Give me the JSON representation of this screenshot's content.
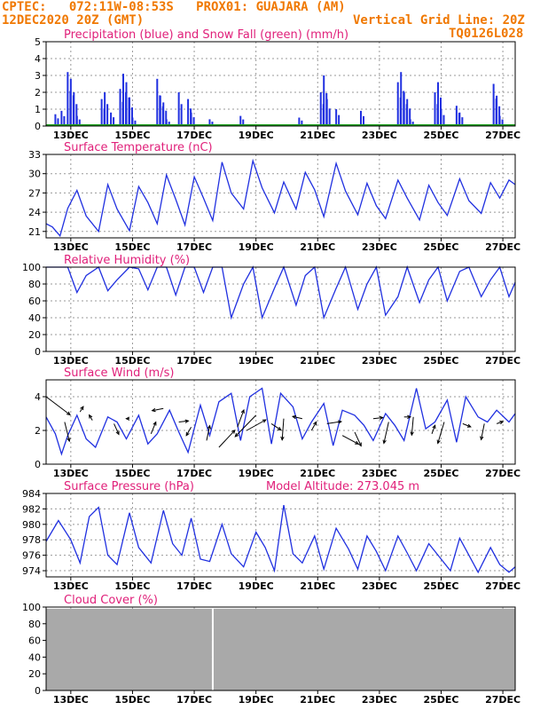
{
  "header": {
    "line1_left": "CPTEC:   072:11W-08:53S   PROX01: GUAJARA (AM)",
    "line2_left": "12DEC2020 20Z (GMT)",
    "line2_right": "Vertical Grid Line: 20Z",
    "line3_right": "TQ0126L028"
  },
  "colors": {
    "title": "#e0207a",
    "header": "#f07800",
    "series": "#2030e0",
    "snow": "#20a020",
    "cloud": "#a9a9a9"
  },
  "x_axis": {
    "range_days": [
      0,
      15.2
    ],
    "tick_labels": [
      "13DEC",
      "15DEC",
      "17DEC",
      "19DEC",
      "21DEC",
      "23DEC",
      "25DEC",
      "27DEC"
    ]
  },
  "chart_data": [
    {
      "type": "bar",
      "title": "Precipitation (blue) and Snow Fall (green) (mm/h)",
      "ylim": [
        0,
        5
      ],
      "yticks": [
        "0",
        "1",
        "2",
        "3",
        "4",
        "5"
      ],
      "series": [
        {
          "name": "Precipitation",
          "values": [
            [
              0.3,
              0.7
            ],
            [
              0.5,
              0.9
            ],
            [
              0.7,
              3.2
            ],
            [
              0.8,
              2.8
            ],
            [
              0.9,
              2.0
            ],
            [
              1.0,
              0.6
            ],
            [
              1.8,
              1.6
            ],
            [
              1.9,
              2.0
            ],
            [
              2.1,
              0.8
            ],
            [
              2.4,
              2.2
            ],
            [
              2.5,
              3.1
            ],
            [
              2.6,
              2.6
            ],
            [
              2.7,
              1.7
            ],
            [
              2.8,
              0.5
            ],
            [
              3.6,
              2.8
            ],
            [
              3.7,
              1.8
            ],
            [
              3.8,
              1.4
            ],
            [
              3.9,
              0.4
            ],
            [
              4.3,
              2.0
            ],
            [
              4.6,
              1.6
            ],
            [
              4.7,
              0.8
            ],
            [
              5.3,
              0.4
            ],
            [
              6.3,
              0.6
            ],
            [
              8.2,
              0.5
            ],
            [
              8.9,
              2.0
            ],
            [
              9.0,
              3.0
            ],
            [
              9.1,
              1.6
            ],
            [
              9.4,
              1.0
            ],
            [
              10.2,
              0.9
            ],
            [
              11.4,
              2.6
            ],
            [
              11.5,
              3.2
            ],
            [
              11.6,
              2.0
            ],
            [
              11.7,
              1.6
            ],
            [
              11.8,
              0.4
            ],
            [
              12.6,
              2.0
            ],
            [
              12.7,
              2.6
            ],
            [
              12.8,
              1.0
            ],
            [
              13.3,
              1.2
            ],
            [
              13.4,
              0.8
            ],
            [
              14.5,
              2.5
            ],
            [
              14.6,
              1.8
            ],
            [
              14.7,
              0.6
            ]
          ]
        },
        {
          "name": "Snow Fall",
          "values": [
            0
          ]
        }
      ]
    },
    {
      "type": "line",
      "title": "Surface Temperature (nC)",
      "ylim": [
        20,
        33
      ],
      "yticks": [
        "21",
        "24",
        "27",
        "30",
        "33"
      ],
      "series": [
        {
          "name": "",
          "x": [
            0,
            0.2,
            0.45,
            0.7,
            1.0,
            1.3,
            1.7,
            2.0,
            2.3,
            2.7,
            3.0,
            3.3,
            3.6,
            3.9,
            4.2,
            4.5,
            4.8,
            5.1,
            5.4,
            5.7,
            6.0,
            6.4,
            6.7,
            7.0,
            7.4,
            7.7,
            8.1,
            8.4,
            8.7,
            9.0,
            9.4,
            9.7,
            10.1,
            10.4,
            10.7,
            11.0,
            11.4,
            11.7,
            12.1,
            12.4,
            12.7,
            13.0,
            13.4,
            13.7,
            14.1,
            14.4,
            14.7,
            15.0,
            15.2
          ],
          "y": [
            22.2,
            21.7,
            20.3,
            24.6,
            27.4,
            23.4,
            21.0,
            28.3,
            24.5,
            21.1,
            28.0,
            25.5,
            22.2,
            29.8,
            26.0,
            22.0,
            29.5,
            26.2,
            22.7,
            31.8,
            27.0,
            24.5,
            32.0,
            27.8,
            23.9,
            28.7,
            24.5,
            30.2,
            27.5,
            23.3,
            31.6,
            27.3,
            23.6,
            28.5,
            25.0,
            23.0,
            29.0,
            26.2,
            22.8,
            28.2,
            25.5,
            23.5,
            29.2,
            25.8,
            23.8,
            28.6,
            26.2,
            29.0,
            28.3
          ]
        }
      ]
    },
    {
      "type": "line",
      "title": "Relative Humidity (%)",
      "ylim": [
        0,
        100
      ],
      "yticks": [
        "0",
        "20",
        "40",
        "60",
        "80",
        "100"
      ],
      "series": [
        {
          "name": "",
          "x": [
            0,
            0.3,
            0.7,
            1.0,
            1.3,
            1.7,
            2.0,
            2.3,
            2.7,
            3.0,
            3.3,
            3.6,
            3.9,
            4.2,
            4.5,
            4.8,
            5.1,
            5.4,
            5.7,
            6.0,
            6.4,
            6.7,
            7.0,
            7.4,
            7.7,
            8.1,
            8.4,
            8.7,
            9.0,
            9.4,
            9.7,
            10.1,
            10.4,
            10.7,
            11.0,
            11.4,
            11.7,
            12.1,
            12.4,
            12.7,
            13.0,
            13.4,
            13.7,
            14.1,
            14.4,
            14.7,
            15.0,
            15.2
          ],
          "y": [
            100,
            100,
            100,
            70,
            90,
            100,
            72,
            85,
            100,
            98,
            73,
            100,
            100,
            67,
            100,
            100,
            70,
            100,
            100,
            40,
            80,
            100,
            40,
            75,
            100,
            55,
            90,
            100,
            40,
            75,
            100,
            50,
            80,
            100,
            43,
            65,
            100,
            58,
            85,
            100,
            60,
            95,
            100,
            65,
            85,
            100,
            65,
            82
          ]
        }
      ]
    },
    {
      "type": "line",
      "title": "Surface Wind (m/s)",
      "ylim": [
        0,
        5
      ],
      "yticks": [
        "0",
        "2",
        "4"
      ],
      "series": [
        {
          "name": "",
          "x": [
            0,
            0.3,
            0.5,
            0.7,
            1.0,
            1.3,
            1.6,
            2.0,
            2.3,
            2.6,
            3.0,
            3.3,
            3.6,
            4.0,
            4.3,
            4.6,
            5.0,
            5.3,
            5.6,
            6.0,
            6.3,
            6.6,
            7.0,
            7.3,
            7.6,
            8.0,
            8.3,
            8.6,
            9.0,
            9.3,
            9.6,
            10.0,
            10.3,
            10.6,
            11.0,
            11.3,
            11.6,
            12.0,
            12.3,
            12.6,
            13.0,
            13.3,
            13.6,
            14.0,
            14.3,
            14.6,
            15.0,
            15.2
          ],
          "y": [
            2.8,
            1.8,
            0.6,
            1.7,
            2.9,
            1.5,
            1.0,
            2.8,
            2.5,
            1.5,
            2.9,
            1.2,
            1.8,
            3.2,
            1.9,
            0.7,
            3.5,
            1.7,
            3.7,
            4.2,
            1.4,
            4.0,
            4.5,
            1.2,
            4.2,
            3.4,
            1.5,
            2.5,
            3.6,
            1.1,
            3.2,
            2.9,
            2.3,
            1.4,
            3.0,
            2.3,
            1.4,
            4.5,
            2.1,
            2.5,
            3.8,
            1.3,
            4.0,
            2.8,
            2.5,
            3.2,
            2.5,
            3.0
          ]
        }
      ],
      "vectors": [
        [
          0,
          4.0,
          1.5,
          -1.7
        ],
        [
          0.6,
          2.5,
          0.3,
          -1.8
        ],
        [
          1.1,
          3.1,
          0.2,
          0.5
        ],
        [
          1.5,
          2.6,
          -0.2,
          0.5
        ],
        [
          2.2,
          2.4,
          0.3,
          -1.0
        ],
        [
          2.7,
          2.7,
          -0.2,
          0.0
        ],
        [
          3.4,
          1.8,
          0.3,
          1.1
        ],
        [
          3.8,
          3.3,
          -0.7,
          -0.2
        ],
        [
          4.3,
          2.5,
          0.6,
          0.1
        ],
        [
          4.7,
          2.2,
          -0.3,
          -0.8
        ],
        [
          5.2,
          1.4,
          0.2,
          1.4
        ],
        [
          5.6,
          1.0,
          1.0,
          1.6
        ],
        [
          6.2,
          2.2,
          0.4,
          1.6
        ],
        [
          6.5,
          2.0,
          1.2,
          1.0
        ],
        [
          6.8,
          2.9,
          -1.3,
          -2.0
        ],
        [
          7.3,
          2.4,
          0.6,
          -0.6
        ],
        [
          7.7,
          2.7,
          -0.1,
          -2.0
        ],
        [
          8.3,
          2.7,
          -0.6,
          0.2
        ],
        [
          8.6,
          2.0,
          0.3,
          0.8
        ],
        [
          9.1,
          2.4,
          0.9,
          0.2
        ],
        [
          9.6,
          1.7,
          1.0,
          -0.8
        ],
        [
          10.0,
          1.9,
          0.4,
          -1.3
        ],
        [
          10.6,
          2.7,
          0.6,
          0.1
        ],
        [
          11.1,
          2.5,
          -0.3,
          -2.0
        ],
        [
          11.6,
          2.8,
          0.4,
          0.0
        ],
        [
          11.9,
          2.8,
          -0.1,
          -1.7
        ],
        [
          12.5,
          1.8,
          0.2,
          0.8
        ],
        [
          12.9,
          2.5,
          -0.4,
          -2.0
        ],
        [
          13.5,
          2.4,
          0.5,
          -0.3
        ],
        [
          14.2,
          2.4,
          -0.2,
          -1.5
        ],
        [
          14.6,
          2.4,
          0.4,
          0.2
        ]
      ]
    },
    {
      "type": "line",
      "title": "Surface Pressure (hPa)",
      "subtitle": "Model Altitude: 273.045 m",
      "ylim": [
        973.2,
        984
      ],
      "yticks": [
        "974",
        "976",
        "978",
        "980",
        "982",
        "984"
      ],
      "series": [
        {
          "name": "",
          "x": [
            0,
            0.4,
            0.8,
            1.1,
            1.4,
            1.7,
            2.0,
            2.3,
            2.7,
            3.0,
            3.4,
            3.8,
            4.1,
            4.4,
            4.7,
            5.0,
            5.3,
            5.7,
            6.0,
            6.4,
            6.8,
            7.1,
            7.4,
            7.7,
            8.0,
            8.3,
            8.7,
            9.0,
            9.4,
            9.8,
            10.1,
            10.4,
            10.7,
            11.0,
            11.4,
            11.7,
            12.0,
            12.4,
            12.8,
            13.1,
            13.4,
            13.7,
            14.0,
            14.4,
            14.7,
            15.0,
            15.2
          ],
          "y": [
            977.8,
            980.5,
            978.0,
            975.0,
            981.0,
            982.2,
            976.0,
            974.8,
            981.5,
            977.0,
            975.0,
            981.8,
            977.5,
            976.0,
            980.8,
            975.5,
            975.2,
            980.0,
            976.2,
            974.5,
            979.0,
            977.0,
            974.0,
            982.5,
            976.2,
            975.0,
            978.5,
            974.2,
            979.5,
            976.8,
            974.2,
            978.5,
            976.5,
            974.0,
            978.5,
            976.3,
            974.0,
            977.5,
            975.5,
            974.0,
            978.2,
            976.0,
            973.8,
            977.0,
            974.8,
            973.8,
            974.5
          ]
        }
      ]
    },
    {
      "type": "bar",
      "title": "Cloud Cover (%)",
      "ylim": [
        0,
        100
      ],
      "yticks": [
        "0",
        "20",
        "40",
        "60",
        "80",
        "100"
      ],
      "series": [
        {
          "name": "",
          "values": [
            98
          ],
          "gap_at_day": 5.4
        }
      ]
    }
  ]
}
